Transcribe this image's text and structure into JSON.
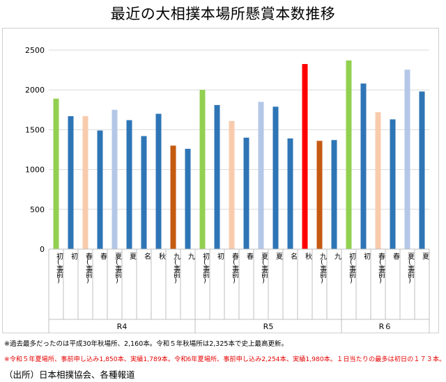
{
  "title": "最近の大相撲本場所懸賞本数推移",
  "chart_data": {
    "type": "bar",
    "ylim": [
      0,
      2500
    ],
    "yticks": [
      0,
      500,
      1000,
      1500,
      2000,
      2500
    ],
    "groups": [
      {
        "label": "R4",
        "start": 0,
        "end": 10
      },
      {
        "label": "R5",
        "start": 10,
        "end": 20
      },
      {
        "label": "R６",
        "start": 20,
        "end": 26
      }
    ],
    "bars": [
      {
        "label": "初(事前)",
        "value": 1890,
        "color": "#92d050"
      },
      {
        "label": "初",
        "value": 1670,
        "color": "#2e75b6"
      },
      {
        "label": "春(事前)",
        "value": 1670,
        "color": "#f8cbad"
      },
      {
        "label": "春",
        "value": 1490,
        "color": "#2e75b6"
      },
      {
        "label": "夏(事前)",
        "value": 1750,
        "color": "#b4c7e7"
      },
      {
        "label": "夏",
        "value": 1620,
        "color": "#2e75b6"
      },
      {
        "label": "名",
        "value": 1420,
        "color": "#2e75b6"
      },
      {
        "label": "秋",
        "value": 1700,
        "color": "#2e75b6"
      },
      {
        "label": "九(事前)",
        "value": 1300,
        "color": "#c55a11"
      },
      {
        "label": "九",
        "value": 1260,
        "color": "#2e75b6"
      },
      {
        "label": "初(事前)",
        "value": 2000,
        "color": "#92d050"
      },
      {
        "label": "初",
        "value": 1810,
        "color": "#2e75b6"
      },
      {
        "label": "春(事前)",
        "value": 1610,
        "color": "#f8cbad"
      },
      {
        "label": "春",
        "value": 1400,
        "color": "#2e75b6"
      },
      {
        "label": "夏(事前)",
        "value": 1850,
        "color": "#b4c7e7"
      },
      {
        "label": "夏",
        "value": 1789,
        "color": "#2e75b6"
      },
      {
        "label": "名",
        "value": 1390,
        "color": "#2e75b6"
      },
      {
        "label": "秋",
        "value": 2325,
        "color": "#ff0000"
      },
      {
        "label": "九(事前)",
        "value": 1360,
        "color": "#c55a11"
      },
      {
        "label": "九",
        "value": 1370,
        "color": "#2e75b6"
      },
      {
        "label": "初(事前)",
        "value": 2370,
        "color": "#92d050"
      },
      {
        "label": "初",
        "value": 2080,
        "color": "#2e75b6"
      },
      {
        "label": "春(事前)",
        "value": 1720,
        "color": "#f8cbad"
      },
      {
        "label": "春",
        "value": 1630,
        "color": "#2e75b6"
      },
      {
        "label": "夏(事前)",
        "value": 2254,
        "color": "#b4c7e7"
      },
      {
        "label": "夏",
        "value": 1980,
        "color": "#2e75b6"
      }
    ]
  },
  "notes": {
    "note1": "※過去最多だったのは平成30年秋場所、2,160本。令和５年秋場所は2,325本で史上最高更新。",
    "note2": "※令和５年夏場所、事前申し込み1,850本、実績1,789本。令和6年夏場所、事前申し込み2,254本、実績1,980本。１日当たりの最多は初日の１７３本。"
  },
  "source": "（出所）日本相撲協会、各種報道"
}
